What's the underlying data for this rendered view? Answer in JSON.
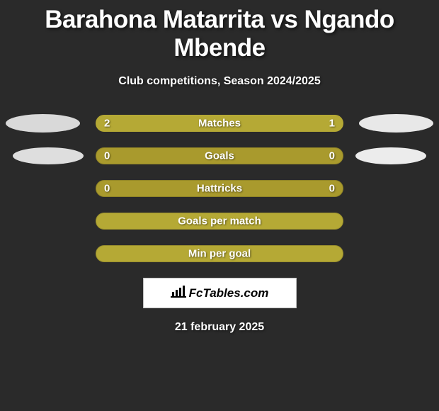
{
  "title": "Barahona Matarrita vs Ngando Mbende",
  "subtitle": "Club competitions, Season 2024/2025",
  "colors": {
    "bg": "#2a2a2a",
    "bar_base": "#a99a2d",
    "bar_fill": "#b5a935",
    "text": "#ffffff"
  },
  "stats": [
    {
      "label": "Matches",
      "left_value": "2",
      "right_value": "1",
      "left_pct": 65,
      "right_pct": 35,
      "show_ellipses": true,
      "ellipse_variant": 1
    },
    {
      "label": "Goals",
      "left_value": "0",
      "right_value": "0",
      "left_pct": 0,
      "right_pct": 0,
      "show_ellipses": true,
      "ellipse_variant": 2
    },
    {
      "label": "Hattricks",
      "left_value": "0",
      "right_value": "0",
      "left_pct": 0,
      "right_pct": 0,
      "show_ellipses": false
    },
    {
      "label": "Goals per match",
      "left_value": "",
      "right_value": "",
      "left_pct": 100,
      "right_pct": 0,
      "show_ellipses": false,
      "full": true
    },
    {
      "label": "Min per goal",
      "left_value": "",
      "right_value": "",
      "left_pct": 100,
      "right_pct": 0,
      "show_ellipses": false,
      "full": true
    }
  ],
  "badge_text": "FcTables.com",
  "footer_date": "21 february 2025"
}
